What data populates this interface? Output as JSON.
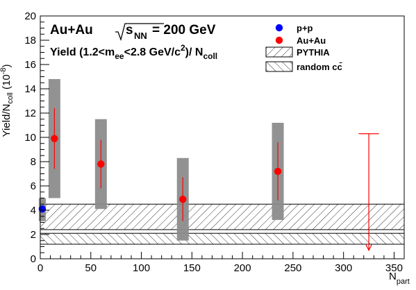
{
  "chart_data": {
    "type": "scatter",
    "title": "Au+Au",
    "energy_label": "√s_NN = 200 GeV",
    "subtitle": "Yield (1.2<m_ee<2.8 GeV/c²)/ N_coll",
    "xlabel": "N_part",
    "ylabel": "Yield/N_coll (10^-8)",
    "xlim": [
      0,
      360
    ],
    "ylim": [
      0,
      20
    ],
    "x_ticks": [
      0,
      50,
      100,
      150,
      200,
      250,
      300,
      350
    ],
    "y_ticks": [
      0,
      2,
      4,
      6,
      8,
      10,
      12,
      14,
      16,
      18,
      20
    ],
    "grid": false,
    "legend_position": "top-right",
    "legend": {
      "pp": "p+p",
      "auau": "Au+Au",
      "pythia": "PYTHIA",
      "random": "random cc̄"
    },
    "colors": {
      "pp": "#0000ff",
      "auau": "#ff0000",
      "syst_box": "#8c8c8c",
      "band_line": "#000000"
    },
    "series": [
      {
        "name": "p+p",
        "points": [
          {
            "x": 2,
            "y": 4.1,
            "syst_low": 3.1,
            "syst_high": 5.0
          }
        ]
      },
      {
        "name": "Au+Au",
        "points": [
          {
            "x": 14,
            "y": 9.9,
            "err_low": 7.4,
            "err_high": 12.4,
            "syst_low": 5.0,
            "syst_high": 14.8
          },
          {
            "x": 60,
            "y": 7.8,
            "err_low": 5.8,
            "err_high": 9.8,
            "syst_low": 4.1,
            "syst_high": 11.5
          },
          {
            "x": 141,
            "y": 4.9,
            "err_low": 3.1,
            "err_high": 6.7,
            "syst_low": 1.5,
            "syst_high": 8.3
          },
          {
            "x": 235,
            "y": 7.2,
            "err_low": 4.8,
            "err_high": 9.6,
            "syst_low": 3.2,
            "syst_high": 11.2
          }
        ]
      }
    ],
    "upper_limit": {
      "x": 325,
      "y_top": 10.3,
      "y_bottom": 0.7,
      "cap_half_width": 10
    },
    "bands": [
      {
        "name": "PYTHIA",
        "y_low": 2.4,
        "y_high": 4.5
      },
      {
        "name": "random cc̄",
        "y_low": 1.2,
        "y_high": 2.1
      }
    ]
  }
}
